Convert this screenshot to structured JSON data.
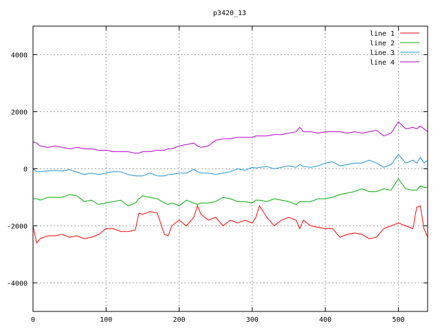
{
  "chart_data": {
    "type": "line",
    "title": "p3420_13",
    "xlabel": "",
    "ylabel": "",
    "xlim": [
      0,
      540
    ],
    "ylim": [
      -5000,
      5000
    ],
    "xticks": [
      0,
      100,
      200,
      300,
      400,
      500
    ],
    "yticks": [
      -4000,
      -2000,
      0,
      2000,
      4000
    ],
    "grid": true,
    "legend_position": "top-right",
    "x": [
      0,
      5,
      10,
      20,
      30,
      40,
      50,
      60,
      70,
      80,
      90,
      100,
      110,
      120,
      130,
      140,
      145,
      150,
      160,
      170,
      180,
      185,
      190,
      200,
      210,
      220,
      225,
      230,
      240,
      250,
      260,
      270,
      280,
      290,
      300,
      305,
      310,
      320,
      330,
      340,
      350,
      360,
      365,
      370,
      380,
      390,
      400,
      410,
      420,
      430,
      440,
      450,
      460,
      470,
      480,
      490,
      500,
      510,
      520,
      525,
      530,
      535,
      540
    ],
    "series": [
      {
        "name": "line 1",
        "color": "#ff0000",
        "values": [
          -2000,
          -2600,
          -2450,
          -2350,
          -2350,
          -2300,
          -2400,
          -2350,
          -2450,
          -2400,
          -2300,
          -2100,
          -2100,
          -2200,
          -2200,
          -2150,
          -1550,
          -1600,
          -1500,
          -1550,
          -2300,
          -2350,
          -2000,
          -1800,
          -2000,
          -1700,
          -1300,
          -1600,
          -1800,
          -1700,
          -2000,
          -1800,
          -1900,
          -1800,
          -1900,
          -1700,
          -1300,
          -1700,
          -2000,
          -1800,
          -1700,
          -1800,
          -2100,
          -1800,
          -2000,
          -2050,
          -2100,
          -2100,
          -2400,
          -2300,
          -2250,
          -2300,
          -2450,
          -2400,
          -2100,
          -2000,
          -1900,
          -2000,
          -2100,
          -1350,
          -1300,
          -2100,
          -2400
        ]
      },
      {
        "name": "line 2",
        "color": "#00aa00",
        "values": [
          -1050,
          -1050,
          -1100,
          -1000,
          -1000,
          -1000,
          -900,
          -950,
          -1150,
          -1100,
          -1250,
          -1200,
          -1150,
          -1100,
          -1300,
          -1200,
          -1050,
          -950,
          -1000,
          -1050,
          -1200,
          -1250,
          -1200,
          -1300,
          -1100,
          -1200,
          -1250,
          -1200,
          -1200,
          -1150,
          -1000,
          -1050,
          -1150,
          -1150,
          -1200,
          -1100,
          -1100,
          -1150,
          -1050,
          -1100,
          -1150,
          -1250,
          -1150,
          -1150,
          -1150,
          -1050,
          -1050,
          -1000,
          -900,
          -850,
          -800,
          -700,
          -800,
          -800,
          -700,
          -750,
          -350,
          -700,
          -750,
          -750,
          -600,
          -650,
          -650
        ]
      },
      {
        "name": "line 3",
        "color": "#1e90d8",
        "values": [
          0,
          -100,
          -100,
          -80,
          -60,
          -80,
          -30,
          -120,
          -200,
          -150,
          -200,
          -150,
          -100,
          -100,
          -200,
          -250,
          -250,
          -250,
          -150,
          -250,
          -250,
          -200,
          -200,
          -150,
          -150,
          -20,
          -100,
          -150,
          -150,
          -200,
          -150,
          -100,
          0,
          -50,
          50,
          30,
          50,
          80,
          0,
          50,
          100,
          50,
          150,
          80,
          50,
          100,
          200,
          250,
          100,
          150,
          200,
          200,
          300,
          200,
          50,
          150,
          500,
          200,
          300,
          200,
          400,
          200,
          300
        ]
      },
      {
        "name": "line 4",
        "color": "#b300cc",
        "values": [
          950,
          900,
          800,
          750,
          800,
          750,
          700,
          750,
          700,
          700,
          650,
          650,
          600,
          600,
          600,
          550,
          550,
          600,
          600,
          650,
          650,
          700,
          700,
          800,
          850,
          900,
          800,
          750,
          800,
          1000,
          1050,
          1050,
          1100,
          1100,
          1100,
          1150,
          1150,
          1150,
          1200,
          1200,
          1250,
          1300,
          1450,
          1300,
          1300,
          1250,
          1300,
          1300,
          1300,
          1250,
          1300,
          1250,
          1300,
          1350,
          1150,
          1250,
          1650,
          1400,
          1450,
          1400,
          1500,
          1400,
          1300
        ]
      }
    ]
  }
}
